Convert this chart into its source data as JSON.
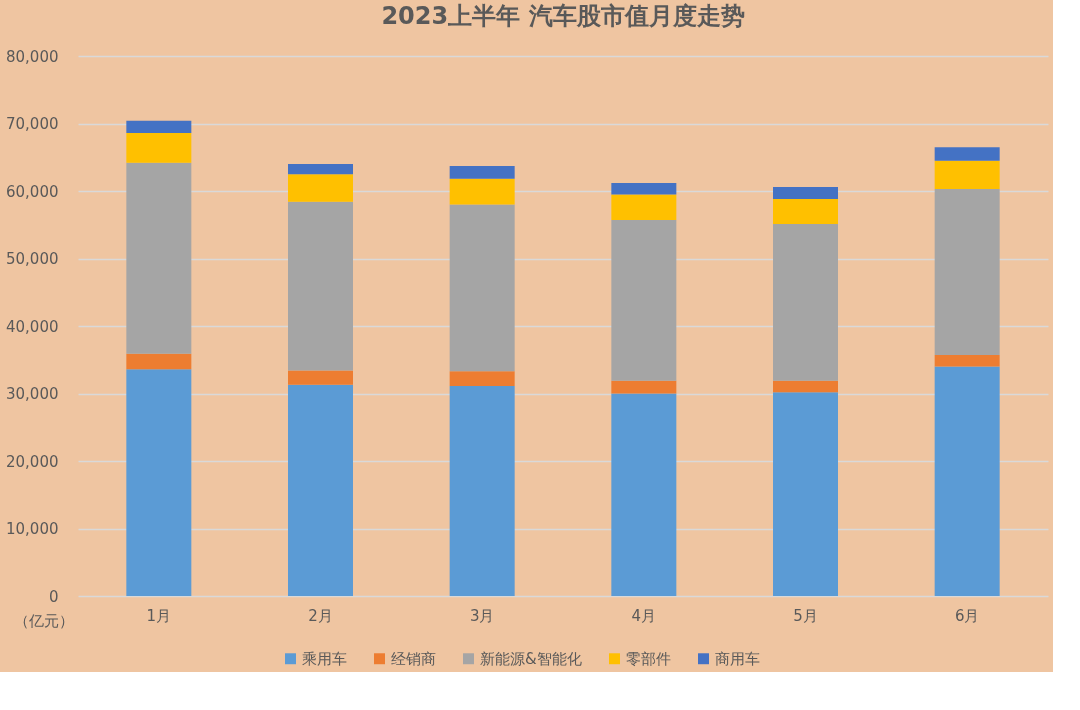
{
  "chart_data": {
    "type": "bar",
    "title": "2023上半年 汽车股市值月度走势",
    "ylabel": "（亿元）",
    "categories": [
      "1月",
      "2月",
      "3月",
      "4月",
      "5月",
      "6月"
    ],
    "stacked": true,
    "series": [
      {
        "name": "乘用车",
        "color": "#5b9bd5",
        "values": [
          33600,
          31300,
          31100,
          30000,
          30200,
          34000
        ]
      },
      {
        "name": "经销商",
        "color": "#ed7d31",
        "values": [
          2300,
          2100,
          2200,
          1900,
          1700,
          1700
        ]
      },
      {
        "name": "新能源&智能化",
        "color": "#a5a5a5",
        "values": [
          28300,
          25000,
          24700,
          23800,
          23200,
          24600
        ]
      },
      {
        "name": "零部件",
        "color": "#ffc000",
        "values": [
          4400,
          4100,
          3800,
          3800,
          3700,
          4200
        ]
      },
      {
        "name": "商用车",
        "color": "#4472c4",
        "values": [
          1800,
          1500,
          1900,
          1700,
          1800,
          2000
        ]
      }
    ],
    "ylim": [
      0,
      80000
    ],
    "yticks": [
      0,
      {
        "value": 10000,
        "label": "10,000"
      },
      {
        "value": 20000,
        "label": "20,000"
      },
      {
        "value": 30000,
        "label": "30,000"
      },
      {
        "value": 40000,
        "label": "40,000"
      },
      {
        "value": 50000,
        "label": "50,000"
      },
      {
        "value": 60000,
        "label": "60,000"
      },
      {
        "value": 70000,
        "label": "70,000"
      },
      {
        "value": 80000,
        "label": "80,000"
      }
    ],
    "grid": "y",
    "legend": "bottom"
  }
}
